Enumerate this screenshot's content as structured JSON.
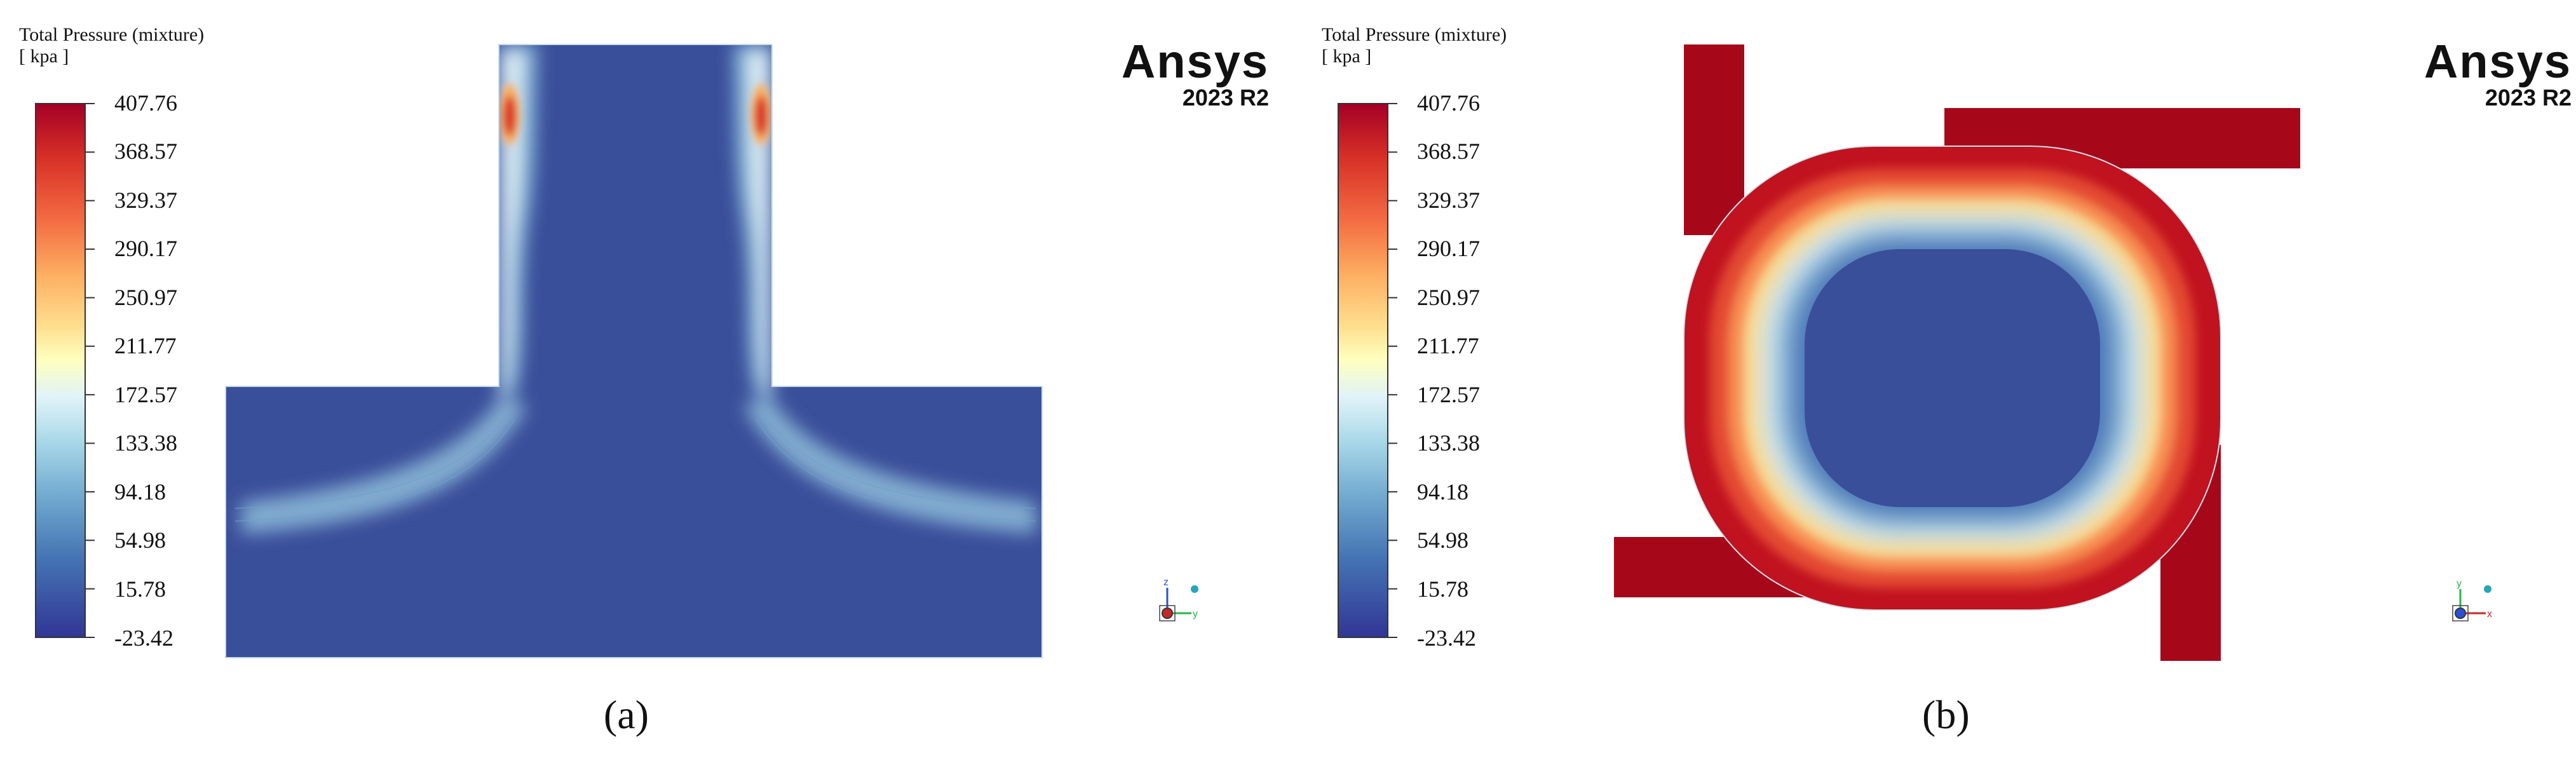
{
  "panels": [
    {
      "title_line1": "Total Pressure (mixture)",
      "title_line2": "[ kpa ]",
      "colorbar_labels": [
        "407.76",
        "368.57",
        "329.37",
        "290.17",
        "250.97",
        "211.77",
        "172.57",
        "133.38",
        "94.18",
        "54.98",
        "15.78",
        "-23.42"
      ],
      "brand": "Ansys",
      "version": "2023 R2",
      "caption": "(a)",
      "axis_labels": [
        "z",
        "y"
      ]
    },
    {
      "title_line1": "Total Pressure (mixture)",
      "title_line2": "[ kpa ]",
      "colorbar_labels": [
        "407.76",
        "368.57",
        "329.37",
        "290.17",
        "250.97",
        "211.77",
        "172.57",
        "133.38",
        "94.18",
        "54.98",
        "15.78",
        "-23.42"
      ],
      "brand": "Ansys",
      "version": "2023 R2",
      "caption": "(b)",
      "axis_labels": [
        "y",
        "x"
      ]
    }
  ],
  "colors": {
    "min": "#313695",
    "low": "#4575b4",
    "mid_low": "#74add1",
    "mid": "#e0f3f8",
    "mid_high": "#fee090",
    "high": "#f46d43",
    "max": "#a50026"
  }
}
